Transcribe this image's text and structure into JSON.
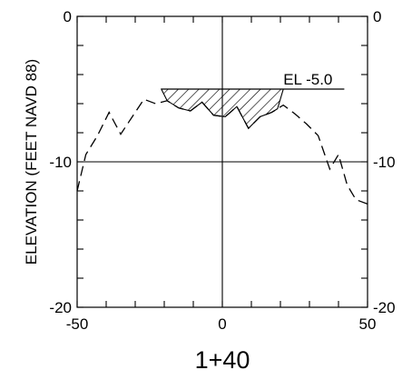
{
  "chart_data": {
    "type": "line",
    "title": "",
    "section_label": "1+40",
    "xlabel": "",
    "ylabel": "ELEVATION (FEET NAVD 88)",
    "xlim": [
      -50,
      50
    ],
    "ylim": [
      -20,
      0
    ],
    "x_ticks": [
      -50,
      0,
      50
    ],
    "x_tick_labels": [
      "-50",
      "0",
      "50"
    ],
    "y_ticks": [
      0,
      -10,
      -20
    ],
    "y_tick_labels": [
      "0",
      "-10",
      "-20"
    ],
    "grid": false,
    "legend": "none",
    "reference_lines": {
      "x": 0,
      "y": -10
    },
    "annotation": {
      "text": "EL -5.0",
      "value": -5.0
    },
    "series": [
      {
        "style": "dashed",
        "x": [
          -50,
          -47,
          -43,
          -39,
          -35,
          -31,
          -27,
          -23,
          -19,
          -15,
          -11,
          -7,
          -3,
          1,
          5,
          9,
          13,
          17,
          21,
          25,
          29,
          33,
          37,
          40,
          43,
          46,
          50
        ],
        "y": [
          -12.0,
          -9.5,
          -8.2,
          -6.6,
          -8.1,
          -6.9,
          -5.7,
          -6.0,
          -5.8,
          -6.3,
          -6.5,
          -5.9,
          -6.8,
          -6.9,
          -6.2,
          -7.7,
          -6.9,
          -6.6,
          -6.1,
          -6.7,
          -7.4,
          -8.2,
          -10.5,
          -9.5,
          -11.6,
          -12.6,
          -12.9
        ]
      }
    ],
    "hatched_fill": {
      "between": "series_and_annotation",
      "x_range": [
        -19,
        19
      ]
    },
    "colors": {
      "line": "#000000",
      "hatch": "#000000",
      "background": "#ffffff"
    }
  }
}
